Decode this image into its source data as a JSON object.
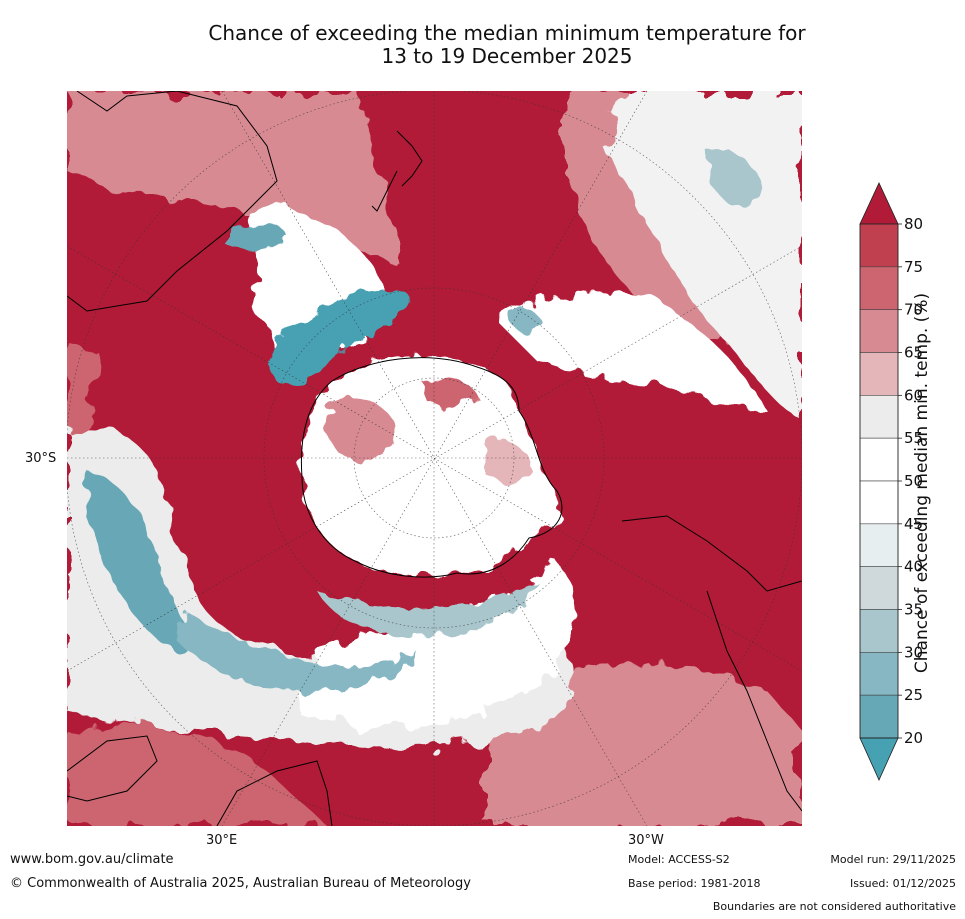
{
  "title": {
    "line1": "Chance of exceeding the median minimum temperature for",
    "line2": "13 to 19 December 2025"
  },
  "map": {
    "projection": "south polar stereographic",
    "lat_label": "30°S",
    "lon_labels": [
      "30°E",
      "30°W"
    ]
  },
  "colorbar": {
    "title": "Chance of exceeding median min. temp. (%)",
    "ticks": [
      "80",
      "75",
      "70",
      "65",
      "60",
      "55",
      "50",
      "45",
      "40",
      "35",
      "30",
      "25",
      "20"
    ],
    "bands": [
      {
        "range": ">80",
        "color": "#b11b37"
      },
      {
        "range": "75-80",
        "color": "#c0404f"
      },
      {
        "range": "70-75",
        "color": "#cc6570"
      },
      {
        "range": "65-70",
        "color": "#d88a92"
      },
      {
        "range": "60-65",
        "color": "#e4b5b9"
      },
      {
        "range": "55-60",
        "color": "#ececec"
      },
      {
        "range": "50-55",
        "color": "#ffffff"
      },
      {
        "range": "45-50",
        "color": "#ffffff"
      },
      {
        "range": "40-45",
        "color": "#e7eef0"
      },
      {
        "range": "35-40",
        "color": "#cfd8db"
      },
      {
        "range": "30-35",
        "color": "#a9c6cc"
      },
      {
        "range": "25-30",
        "color": "#86b7c3"
      },
      {
        "range": "20-25",
        "color": "#67a8b6"
      },
      {
        "range": "<20",
        "color": "#46a1b3"
      }
    ]
  },
  "footer": {
    "url": "www.bom.gov.au/climate",
    "copyright": "© Commonwealth of Australia 2025, Australian Bureau of Meteorology",
    "model": "Model: ACCESS-S2",
    "base_period": "Base period: 1981-2018",
    "model_run": "Model run: 29/11/2025",
    "issued": "Issued: 01/12/2025",
    "disclaimer": "Boundaries are not considered authoritative"
  }
}
